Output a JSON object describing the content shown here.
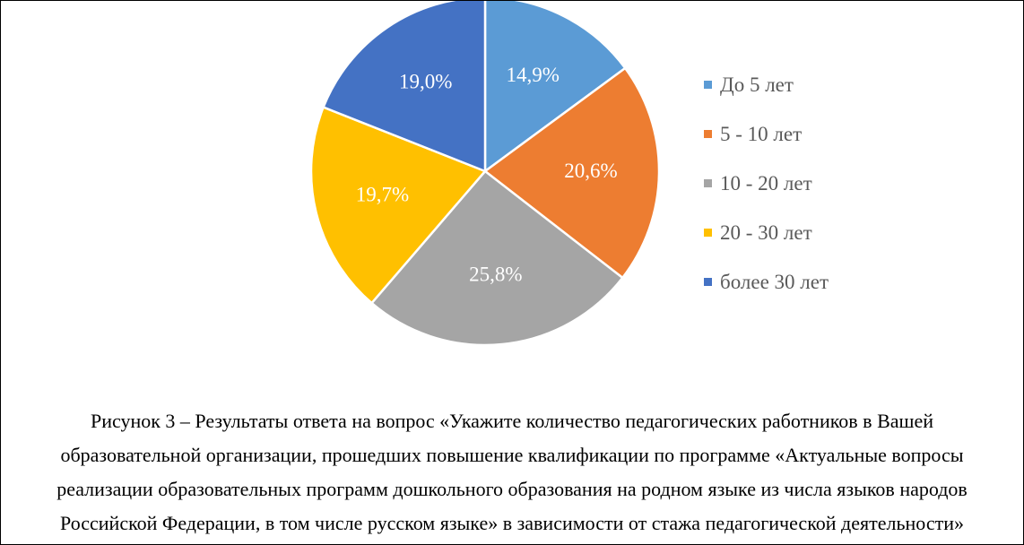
{
  "chart_data": {
    "type": "pie",
    "categories": [
      "До 5 лет",
      "5 - 10 лет",
      "10 - 20 лет",
      "20 - 30 лет",
      "более 30 лет"
    ],
    "values": [
      14.9,
      20.6,
      25.8,
      19.7,
      19.0
    ],
    "value_labels": [
      "14,9%",
      "20,6%",
      "25,8%",
      "19,7%",
      "19,0%"
    ],
    "colors": [
      "#5b9bd5",
      "#ed7d31",
      "#a5a5a5",
      "#ffc000",
      "#4472c4"
    ],
    "legend_position": "right",
    "start": "top, clockwise"
  },
  "caption": {
    "line1": "Рисунок 3  – Результаты ответа на вопрос «Укажите количество педагогических работников в Вашей",
    "line2": "образовательной организации, прошедших повышение квалификации по программе «Актуальные вопросы",
    "line3": "реализации образовательных программ дошкольного образования на родном языке из числа языков народов",
    "line4": "Российской Федерации, в том числе русском языке» в зависимости от стажа педагогической деятельности»"
  }
}
